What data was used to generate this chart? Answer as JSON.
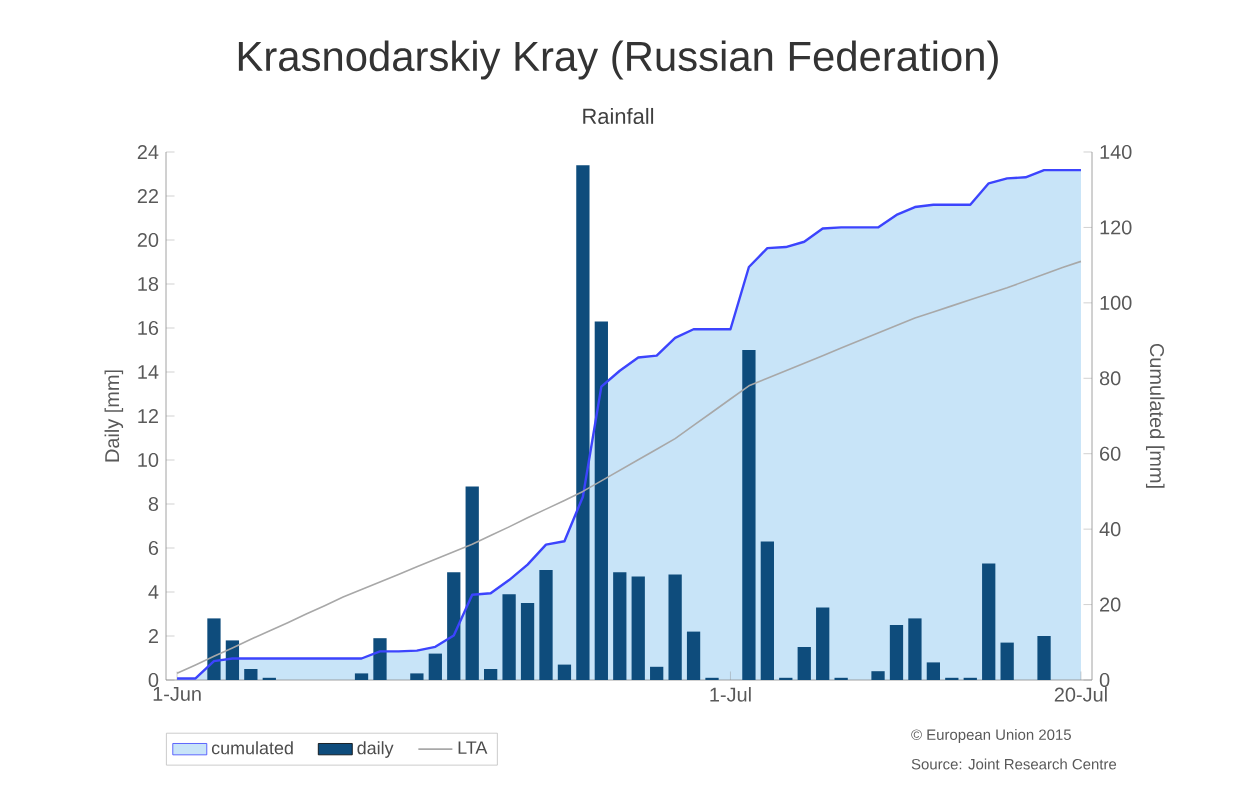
{
  "chart_data": {
    "type": "bar",
    "title": "Krasnodarskiy Kray (Russian Federation)",
    "subtitle": "Rainfall",
    "ylabel": "Daily [mm]",
    "y2label": "Cumulated [mm]",
    "categories": [
      "1-Jun",
      null,
      null,
      null,
      null,
      null,
      null,
      null,
      null,
      null,
      null,
      null,
      null,
      null,
      null,
      null,
      null,
      null,
      null,
      null,
      null,
      null,
      null,
      null,
      null,
      null,
      null,
      null,
      null,
      null,
      "1-Jul",
      null,
      null,
      null,
      null,
      null,
      null,
      null,
      null,
      null,
      null,
      null,
      null,
      null,
      null,
      null,
      null,
      null,
      null,
      "20-Jul"
    ],
    "series": [
      {
        "name": "cumulated",
        "type": "area",
        "axis": "y2",
        "color": "#c8e4f8",
        "values": [
          0.4,
          0.4,
          5,
          5.7,
          5.7,
          5.7,
          5.7,
          5.7,
          5.7,
          5.7,
          5.7,
          7.6,
          7.6,
          7.8,
          8.8,
          11.8,
          22.6,
          23,
          26.5,
          30.6,
          35.9,
          36.8,
          48.6,
          77.8,
          82,
          85.5,
          86,
          90.7,
          93,
          93,
          93,
          109.5,
          114.5,
          114.8,
          116.2,
          119.7,
          120,
          120,
          120,
          123.3,
          125.4,
          126,
          126,
          126,
          131.7,
          133,
          133.3,
          135.2,
          135.2,
          135.2
        ]
      },
      {
        "name": "daily",
        "color": "#0e4c7c",
        "values": [
          0,
          0,
          2.8,
          1.8,
          0.5,
          0.1,
          0,
          0,
          0,
          0,
          0.3,
          1.9,
          0,
          0.3,
          1.2,
          4.9,
          8.8,
          0.5,
          3.9,
          3.5,
          5,
          0.7,
          23.4,
          16.3,
          4.9,
          4.7,
          0.6,
          4.8,
          2.2,
          0.1,
          0,
          15,
          6.3,
          0.1,
          1.5,
          3.3,
          0.1,
          0,
          0.4,
          2.5,
          2.8,
          0.8,
          0.1,
          0.1,
          5.3,
          1.7,
          0,
          2,
          0,
          0
        ]
      },
      {
        "name": "LTA",
        "type": "line",
        "axis": "y2",
        "color": "#a8a8a8",
        "values": [
          1.8,
          4,
          6.3,
          8.5,
          10.8,
          13,
          15.2,
          17.5,
          19.7,
          22,
          24,
          26,
          28,
          30,
          32,
          34,
          36,
          38.3,
          40.6,
          43,
          45.3,
          47.6,
          50,
          52.8,
          55.6,
          58.4,
          61.2,
          64,
          67.5,
          71,
          74.5,
          78,
          80,
          82,
          84,
          86,
          88,
          90,
          92,
          94,
          96,
          97.6,
          99.2,
          100.8,
          102.4,
          104,
          105.8,
          107.6,
          109.4,
          111
        ]
      }
    ],
    "ylim": [
      0,
      24
    ],
    "yticks": [
      0,
      2,
      4,
      6,
      8,
      10,
      12,
      14,
      16,
      18,
      20,
      22,
      24
    ],
    "y2lim": [
      0,
      140
    ],
    "y2ticks": [
      0,
      20,
      40,
      60,
      80,
      100,
      120,
      140
    ],
    "legend": "bottom",
    "grid": false,
    "marker": "none",
    "annotations": [
      "© European Union 2015",
      "Source: Joint Research Centre"
    ]
  }
}
